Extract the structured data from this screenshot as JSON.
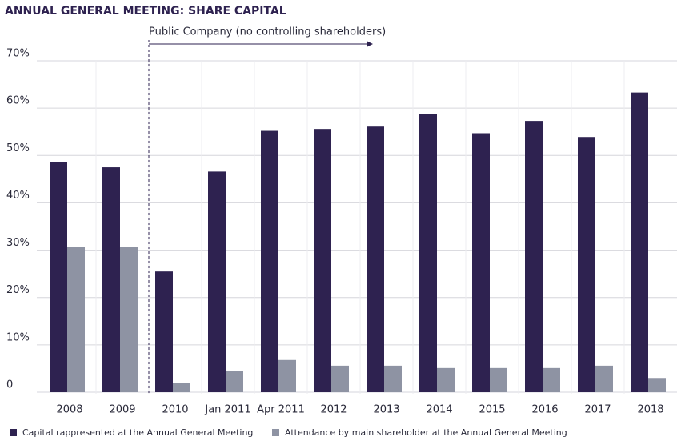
{
  "chart_data": {
    "type": "bar",
    "title": "ANNUAL GENERAL MEETING: SHARE CAPITAL",
    "annotation": "Public Company (no controlling shareholders)",
    "categories": [
      "2008",
      "2009",
      "2010",
      "Jan 2011",
      "Apr 2011",
      "2012",
      "2013",
      "2014",
      "2015",
      "2016",
      "2017",
      "2018"
    ],
    "series": [
      {
        "name": "Capital rappresented at the Annual General Meeting",
        "color": "#2e2250",
        "values": [
          48.6,
          47.5,
          25.5,
          46.6,
          55.2,
          55.6,
          56.1,
          58.8,
          54.7,
          57.3,
          53.9,
          63.3
        ]
      },
      {
        "name": "Attendance by main shareholder at the Annual General Meeting",
        "color": "#8e93a3",
        "values": [
          30.7,
          30.7,
          1.9,
          4.4,
          6.8,
          5.6,
          5.6,
          5.1,
          5.1,
          5.1,
          5.6,
          3
        ]
      }
    ],
    "ylim": [
      0,
      70
    ],
    "yticks": [
      0,
      {
        "value": 10,
        "label": "10%"
      },
      {
        "value": 20,
        "label": "20%"
      },
      {
        "value": 30,
        "label": "30%"
      },
      {
        "value": 40,
        "label": "40%"
      },
      {
        "value": 50,
        "label": "50%"
      },
      {
        "value": 60,
        "label": "60%"
      },
      {
        "value": 70,
        "label": "70%"
      }
    ],
    "grid": true,
    "legend": "bottom-left"
  }
}
